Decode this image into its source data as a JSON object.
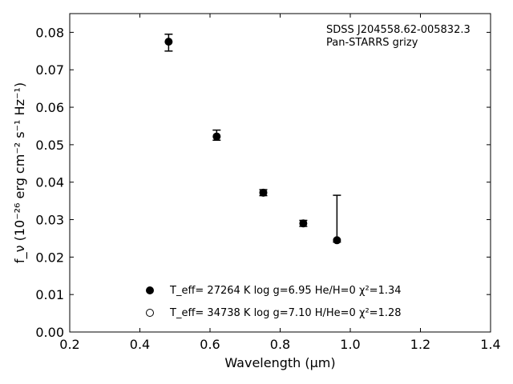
{
  "chart_data": {
    "type": "scatter",
    "xlabel": "Wavelength (μm)",
    "ylabel": "f_ν (10⁻²⁶ erg cm⁻² s⁻¹ Hz⁻¹)",
    "xlim": [
      0.2,
      1.4
    ],
    "ylim": [
      0.0,
      0.085
    ],
    "xticks": [
      "0.2",
      "0.4",
      "0.6",
      "0.8",
      "1.0",
      "1.2",
      "1.4"
    ],
    "yticks": [
      "0.00",
      "0.01",
      "0.02",
      "0.03",
      "0.04",
      "0.05",
      "0.06",
      "0.07",
      "0.08"
    ],
    "annotations": [
      "SDSS J204558.62-005832.3",
      "Pan-STARRS grizy"
    ],
    "legend_position": "lower-center",
    "observed": {
      "x": [
        0.482,
        0.619,
        0.752,
        0.866,
        0.962
      ],
      "y": [
        0.0775,
        0.0522,
        0.0372,
        0.029,
        0.0245
      ],
      "yerr_low": [
        0.0025,
        0.001,
        0.0008,
        0.0008,
        0.0005
      ],
      "yerr_high": [
        0.002,
        0.0017,
        0.0008,
        0.0008,
        0.012
      ]
    },
    "series": [
      {
        "marker": "filled-circle",
        "label": "T_eff= 27264 K  log g=6.95  He/H=0  χ²=1.34",
        "x": [
          0.482,
          0.619,
          0.752,
          0.866,
          0.962
        ],
        "y": [
          0.0775,
          0.0522,
          0.0372,
          0.029,
          0.0245
        ]
      },
      {
        "marker": "open-circle",
        "label": "T_eff= 34738 K  log g=7.10  H/He=0  χ²=1.28",
        "x": [],
        "y": []
      }
    ],
    "colors": {
      "marker": "#000000",
      "axes": "#000000",
      "background": "#ffffff"
    }
  }
}
